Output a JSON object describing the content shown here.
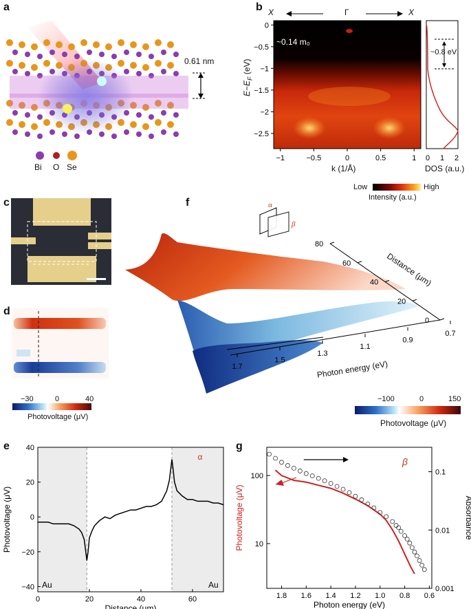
{
  "panels": {
    "a": "a",
    "b": "b",
    "c": "c",
    "d": "d",
    "e": "e",
    "f": "f",
    "g": "g"
  },
  "panel_a": {
    "thickness": "0.61 nm",
    "legend": [
      "Bi",
      "O",
      "Se"
    ],
    "legend_colors": [
      "#8a3cb0",
      "#b02020",
      "#e8961a"
    ]
  },
  "panel_b": {
    "top_labels": [
      "X",
      "Γ",
      "X"
    ],
    "mass": "~0.14 m₀",
    "gap": "~0.8 eV",
    "ylabel": "E−E",
    "ylabel_sub": "F",
    "ylabel_unit": " (eV)",
    "xlabel": "k (1/Å)",
    "xticks": [
      "−1",
      "−0.5",
      "0",
      "0.5",
      "1"
    ],
    "yticks": [
      "0",
      "−0.5",
      "−1",
      "−1.5",
      "−2",
      "−2.5"
    ],
    "dos_xlabel": "DOS (a.u.)",
    "dos_ticks": [
      "0",
      "1",
      "2"
    ],
    "cbar_low": "Low",
    "cbar_high": "High",
    "cbar_label": "Intensity (a.u.)"
  },
  "panel_d": {
    "ticks": [
      "−30",
      "0",
      "40"
    ],
    "cbar_label": "Photovoltage (μV)"
  },
  "panel_f": {
    "alpha": "α",
    "beta": "β",
    "distance_label": "Distance (μm)",
    "distance_ticks": [
      "80",
      "60",
      "40",
      "20",
      "0"
    ],
    "energy_label": "Photon energy (eV)",
    "energy_ticks": [
      "1.7",
      "1.5",
      "1.3",
      "1.1",
      "0.9",
      "0.7"
    ],
    "cbar_ticks": [
      "−100",
      "0",
      "150"
    ],
    "cbar_label": "Photovoltage (μV)"
  },
  "chart_data": [
    {
      "type": "line",
      "panel": "e",
      "xlabel": "Distance (μm)",
      "ylabel": "Photovoltage (μV)",
      "xlim": [
        0,
        72
      ],
      "ylim": [
        -43,
        40
      ],
      "xticks": [
        "0",
        "20",
        "40",
        "60"
      ],
      "yticks": [
        "40",
        "20",
        "0",
        "−20",
        "−40"
      ],
      "regions": [
        "Au",
        "Au"
      ],
      "annotation": "α",
      "x": [
        0,
        2,
        4,
        6,
        8,
        10,
        12,
        14,
        16,
        17,
        18,
        18.5,
        19,
        19.5,
        20,
        21,
        22,
        24,
        26,
        28,
        30,
        32,
        34,
        36,
        38,
        40,
        42,
        44,
        46,
        48,
        49,
        50,
        51,
        52,
        52.5,
        53,
        54,
        56,
        58,
        60,
        62,
        64,
        66,
        68,
        70,
        72
      ],
      "y": [
        -3,
        -3,
        -3,
        -4,
        -4,
        -4,
        -4,
        -5,
        -7,
        -9,
        -13,
        -19,
        -25,
        -20,
        -12,
        -8,
        -5,
        -2,
        0,
        -1,
        1,
        2,
        3,
        4,
        4,
        5,
        6,
        6,
        7,
        9,
        12,
        15,
        21,
        33,
        27,
        20,
        15,
        12,
        10,
        10,
        9,
        9,
        9,
        8,
        8,
        7
      ]
    },
    {
      "type": "line",
      "panel": "g",
      "xlabel": "Photon energy (eV)",
      "ylabel": "Photovoltage (μV)",
      "y2label": "Absorbance",
      "xticks": [
        "1.8",
        "1.6",
        "1.4",
        "1.2",
        "1.0",
        "0.8",
        "0.6"
      ],
      "yticks": [
        "100",
        "10"
      ],
      "y2ticks": [
        "0.1",
        "0.01",
        "0.001"
      ],
      "annotation": "β",
      "series": [
        {
          "x": [
            1.85,
            1.8,
            1.7,
            1.6,
            1.5,
            1.4,
            1.3,
            1.2,
            1.1,
            1.0,
            0.95,
            0.9,
            0.85,
            0.8,
            0.75,
            0.72
          ],
          "y": [
            120,
            100,
            85,
            80,
            72,
            65,
            55,
            45,
            36,
            27,
            22,
            16,
            11,
            7,
            4.5,
            3.6
          ]
        },
        {
          "x": [
            1.9,
            1.85,
            1.8,
            1.75,
            1.7,
            1.65,
            1.6,
            1.55,
            1.5,
            1.45,
            1.4,
            1.35,
            1.3,
            1.25,
            1.2,
            1.15,
            1.1,
            1.05,
            1.0,
            0.95,
            0.9,
            0.87,
            0.85,
            0.83,
            0.8,
            0.78,
            0.76,
            0.74,
            0.72,
            0.7,
            0.68,
            0.66,
            0.64
          ],
          "y": [
            0.2,
            0.17,
            0.145,
            0.128,
            0.115,
            0.103,
            0.093,
            0.085,
            0.077,
            0.07,
            0.063,
            0.056,
            0.05,
            0.044,
            0.038,
            0.033,
            0.028,
            0.024,
            0.02,
            0.017,
            0.014,
            0.012,
            0.011,
            0.0095,
            0.008,
            0.007,
            0.006,
            0.005,
            0.0042,
            0.0036,
            0.003,
            0.0025,
            0.0021
          ]
        }
      ]
    }
  ]
}
